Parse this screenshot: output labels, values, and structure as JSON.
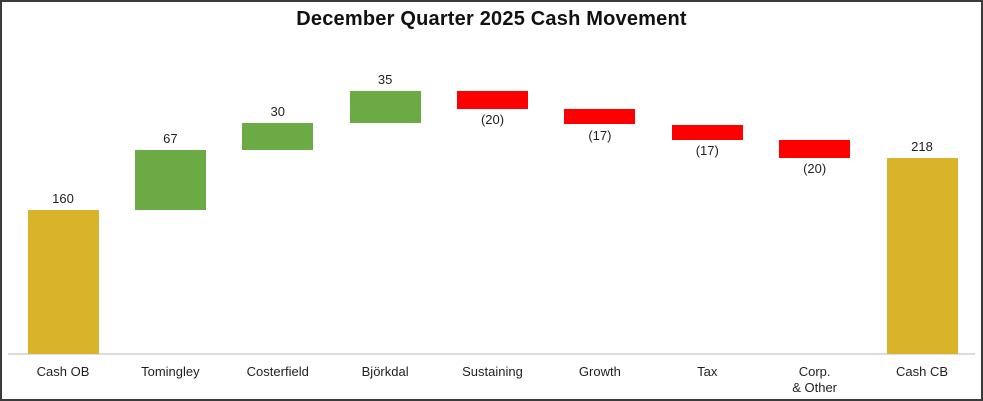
{
  "chart_data": {
    "type": "bar",
    "subtype": "waterfall",
    "title": "December Quarter 2025 Cash Movement",
    "categories": [
      "Cash OB",
      "Tomingley",
      "Costerfield",
      "Björkdal",
      "Sustaining",
      "Growth",
      "Tax",
      "Corp.\n& Other",
      "Cash CB"
    ],
    "bars": [
      {
        "category": "Cash OB",
        "value": 160,
        "display": "160",
        "role": "total",
        "color_key": "total"
      },
      {
        "category": "Tomingley",
        "value": 67,
        "display": "67",
        "role": "delta",
        "color_key": "increase"
      },
      {
        "category": "Costerfield",
        "value": 30,
        "display": "30",
        "role": "delta",
        "color_key": "increase"
      },
      {
        "category": "Björkdal",
        "value": 35,
        "display": "35",
        "role": "delta",
        "color_key": "increase"
      },
      {
        "category": "Sustaining",
        "value": -20,
        "display": "(20)",
        "role": "delta",
        "color_key": "decrease"
      },
      {
        "category": "Growth",
        "value": -17,
        "display": "(17)",
        "role": "delta",
        "color_key": "decrease"
      },
      {
        "category": "Tax",
        "value": -17,
        "display": "(17)",
        "role": "delta",
        "color_key": "decrease"
      },
      {
        "category": "Corp.\n& Other",
        "value": -20,
        "display": "(20)",
        "role": "delta",
        "color_key": "decrease"
      },
      {
        "category": "Cash CB",
        "value": 218,
        "display": "218",
        "role": "total",
        "color_key": "total"
      }
    ],
    "colors": {
      "total": "#D9B42B",
      "increase": "#6BAA44",
      "decrease": "#FF0000"
    },
    "axis": {
      "ylim": [
        0,
        330
      ],
      "baseline_color": "#DCDCDC",
      "grid": false,
      "legend": false,
      "value_labels": "above positives, below negatives in parentheses"
    }
  }
}
